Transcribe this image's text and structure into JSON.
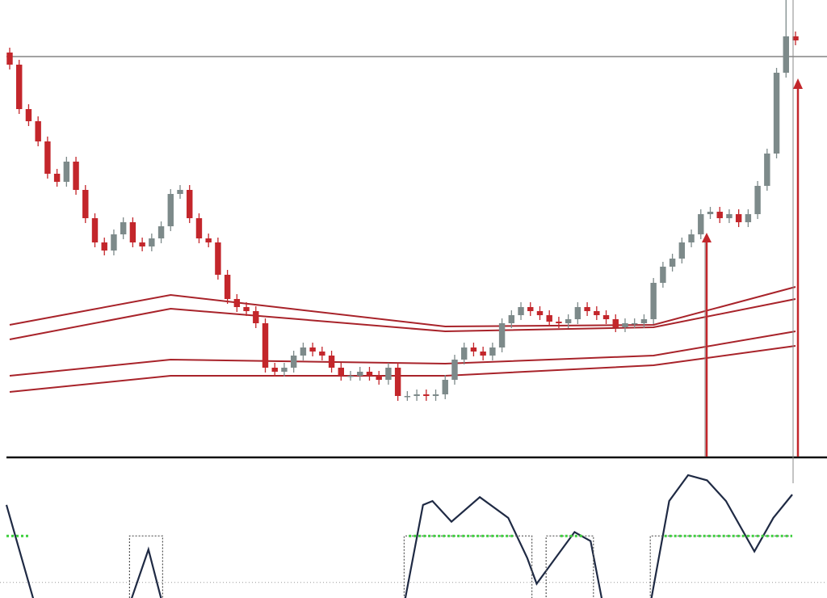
{
  "chart_data": [
    {
      "type": "candlestick",
      "xlim": [
        0,
        83
      ],
      "ylim": [
        0,
        565
      ],
      "up_color": "#7d8a8a",
      "down_color": "#c3262b",
      "hline": 495,
      "hline_color": "#444444",
      "open": [
        500,
        485,
        430,
        415,
        390,
        350,
        340,
        365,
        330,
        295,
        265,
        255,
        275,
        290,
        265,
        260,
        270,
        285,
        325,
        330,
        295,
        270,
        265,
        225,
        195,
        185,
        180,
        165,
        110,
        105,
        110,
        125,
        135,
        130,
        125,
        110,
        100,
        100,
        105,
        100,
        95,
        110,
        75,
        75,
        77,
        75,
        77,
        95,
        120,
        135,
        130,
        125,
        135,
        165,
        175,
        185,
        180,
        175,
        167,
        165,
        170,
        185,
        180,
        175,
        170,
        160,
        165,
        165,
        170,
        215,
        235,
        245,
        265,
        275,
        300,
        303,
        295,
        300,
        290,
        300,
        335,
        375,
        475,
        520
      ],
      "high": [
        506,
        491,
        436,
        421,
        396,
        356,
        371,
        371,
        336,
        301,
        271,
        281,
        296,
        296,
        271,
        276,
        291,
        331,
        336,
        336,
        301,
        276,
        271,
        231,
        201,
        191,
        186,
        171,
        116,
        116,
        131,
        141,
        141,
        136,
        131,
        116,
        106,
        111,
        111,
        106,
        116,
        116,
        81,
        83,
        83,
        83,
        101,
        126,
        141,
        141,
        136,
        141,
        171,
        181,
        191,
        191,
        186,
        181,
        173,
        176,
        191,
        191,
        186,
        181,
        176,
        171,
        171,
        176,
        221,
        241,
        251,
        271,
        281,
        306,
        309,
        309,
        306,
        306,
        306,
        341,
        381,
        481,
        565,
        526
      ],
      "low": [
        479,
        424,
        409,
        384,
        344,
        334,
        334,
        324,
        289,
        259,
        249,
        249,
        269,
        259,
        254,
        254,
        264,
        279,
        319,
        289,
        264,
        259,
        219,
        189,
        179,
        174,
        159,
        104,
        99,
        99,
        104,
        119,
        124,
        119,
        104,
        94,
        94,
        94,
        94,
        89,
        89,
        69,
        69,
        69,
        69,
        69,
        71,
        89,
        114,
        124,
        119,
        119,
        129,
        159,
        169,
        174,
        169,
        161,
        159,
        159,
        164,
        174,
        169,
        164,
        154,
        154,
        159,
        159,
        164,
        209,
        229,
        239,
        259,
        269,
        294,
        289,
        289,
        284,
        284,
        294,
        329,
        369,
        469,
        509
      ],
      "close": [
        485,
        430,
        415,
        390,
        350,
        340,
        365,
        330,
        295,
        265,
        255,
        275,
        290,
        265,
        260,
        270,
        285,
        325,
        330,
        295,
        270,
        265,
        225,
        195,
        185,
        180,
        165,
        110,
        105,
        110,
        125,
        135,
        130,
        125,
        110,
        100,
        100,
        105,
        100,
        95,
        110,
        75,
        75,
        77,
        75,
        77,
        95,
        120,
        135,
        130,
        125,
        135,
        165,
        175,
        185,
        180,
        175,
        167,
        165,
        170,
        185,
        180,
        175,
        170,
        160,
        165,
        165,
        170,
        215,
        235,
        245,
        265,
        275,
        300,
        303,
        295,
        300,
        290,
        300,
        335,
        375,
        475,
        520,
        515
      ],
      "bands": [
        {
          "color": "#a8232a",
          "x": [
            0,
            17,
            46,
            68,
            83
          ],
          "values": [
            163,
            200,
            161,
            163,
            210
          ]
        },
        {
          "color": "#a8232a",
          "x": [
            0,
            17,
            46,
            68,
            83
          ],
          "values": [
            145,
            183,
            155,
            160,
            195
          ]
        },
        {
          "color": "#a8232a",
          "x": [
            0,
            17,
            46,
            68,
            83
          ],
          "values": [
            100,
            120,
            115,
            125,
            155
          ]
        },
        {
          "color": "#a8232a",
          "x": [
            0,
            17,
            46,
            68,
            83
          ],
          "values": [
            80,
            100,
            100,
            113,
            137
          ]
        }
      ]
    },
    {
      "type": "line",
      "xlim": [
        0,
        83
      ],
      "ylim": [
        0,
        100
      ],
      "hline": 12,
      "hline_color": "#999999",
      "series": [
        {
          "color": "#1f2a44",
          "style": "solid",
          "x": [
            0,
            3,
            13,
            15,
            16.5,
            42,
            44,
            45,
            47,
            50,
            53,
            55,
            56,
            58,
            60,
            61.7,
            63,
            68,
            70,
            72,
            74,
            76,
            79,
            81,
            83
          ],
          "values": [
            72,
            -5,
            -5,
            37.5,
            -5,
            -5,
            72,
            75,
            59,
            78,
            62,
            31,
            11,
            31,
            51,
            44,
            -5,
            -5,
            75,
            95,
            91,
            75,
            36,
            62,
            80
          ]
        },
        {
          "color": "#555555",
          "style": "dotted",
          "x": [
            13,
            13,
            16.5,
            16.5,
            42,
            42,
            55.5,
            55.5,
            57,
            57,
            62,
            62,
            68,
            68,
            83
          ],
          "values": [
            -5,
            48,
            48,
            -5,
            -5,
            48,
            48,
            -5,
            -5,
            48,
            48,
            -5,
            -5,
            48,
            48
          ]
        },
        {
          "color": "#3ccf3c",
          "style": "green",
          "x": [
            0,
            2.5,
            3,
            42.5,
            53.5,
            54,
            58.5,
            61,
            62,
            69.5,
            83
          ],
          "values": [
            48,
            48,
            null,
            48,
            48,
            null,
            48,
            48,
            null,
            48,
            48
          ]
        }
      ]
    }
  ]
}
